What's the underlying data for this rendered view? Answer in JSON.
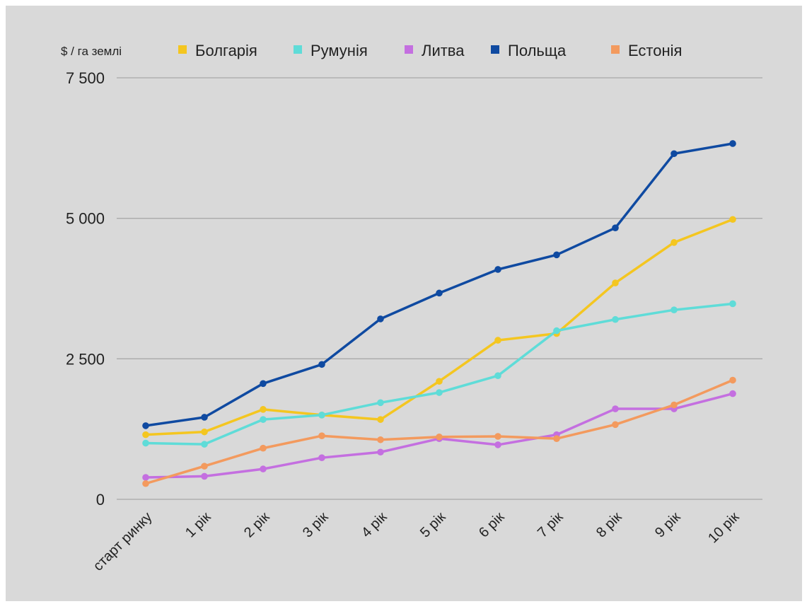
{
  "chart_data": {
    "type": "line",
    "ylabel": "$ / га землі",
    "categories": [
      "старт ринку",
      "1 рік",
      "2 рік",
      "3 рік",
      "4 рік",
      "5 рік",
      "6 рік",
      "7 рік",
      "8 рік",
      "9 рік",
      "10 рік"
    ],
    "ylim": [
      0,
      7500
    ],
    "yticks": [
      0,
      2500,
      5000,
      7500
    ],
    "ytick_labels": [
      "0",
      "2 500",
      "5 000",
      "7 500"
    ],
    "grid": true,
    "legend_position": "top",
    "series": [
      {
        "name": "Болгарія",
        "color": "#f4c620",
        "values": [
          1150,
          1200,
          1600,
          1500,
          1420,
          2100,
          2830,
          2950,
          3850,
          4570,
          4980
        ]
      },
      {
        "name": "Румунія",
        "color": "#5fdcd8",
        "values": [
          1000,
          980,
          1420,
          1500,
          1720,
          1900,
          2200,
          3000,
          3200,
          3370,
          3480
        ]
      },
      {
        "name": "Литва",
        "color": "#c46fe0",
        "values": [
          390,
          410,
          540,
          740,
          840,
          1080,
          970,
          1150,
          1610,
          1610,
          1880
        ]
      },
      {
        "name": "Польща",
        "color": "#0f4aa1",
        "values": [
          1310,
          1460,
          2060,
          2400,
          3210,
          3670,
          4090,
          4350,
          4830,
          6150,
          6330
        ]
      },
      {
        "name": "Естонія",
        "color": "#f39a5e",
        "values": [
          280,
          590,
          910,
          1130,
          1060,
          1110,
          1120,
          1080,
          1330,
          1680,
          2120
        ]
      }
    ]
  }
}
